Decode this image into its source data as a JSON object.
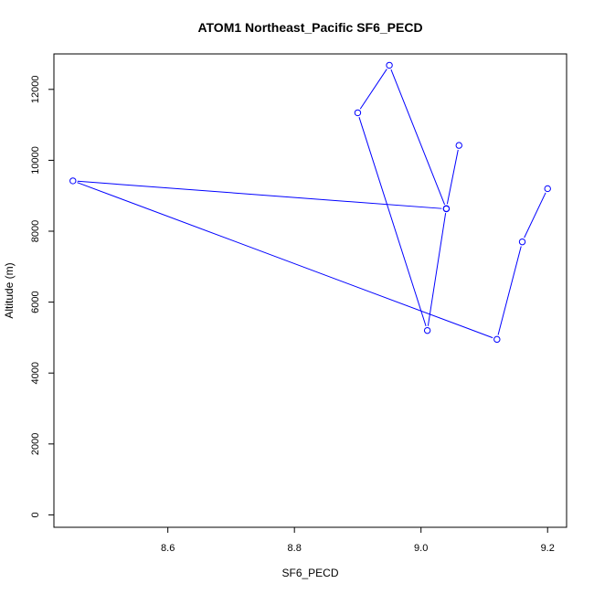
{
  "chart_data": {
    "type": "line",
    "title": "ATOM1 Northeast_Pacific SF6_PECD",
    "xlabel": "SF6_PECD",
    "ylabel": "Altitude (m)",
    "xlim": [
      8.42,
      9.23
    ],
    "ylim": [
      -350,
      13000
    ],
    "x_ticks": [
      8.6,
      8.8,
      9.0,
      9.2
    ],
    "y_ticks": [
      0,
      2000,
      4000,
      6000,
      8000,
      10000,
      12000
    ],
    "series": [
      {
        "color": "#0000ff",
        "marker": "open-circle",
        "x": [
          9.2,
          9.16,
          9.12,
          8.45,
          9.04,
          8.95,
          8.9,
          9.01,
          9.04,
          9.06
        ],
        "y": [
          9200,
          7700,
          4950,
          9420,
          8630,
          12680,
          11340,
          5200,
          8640,
          10420
        ]
      }
    ],
    "grid": false
  }
}
